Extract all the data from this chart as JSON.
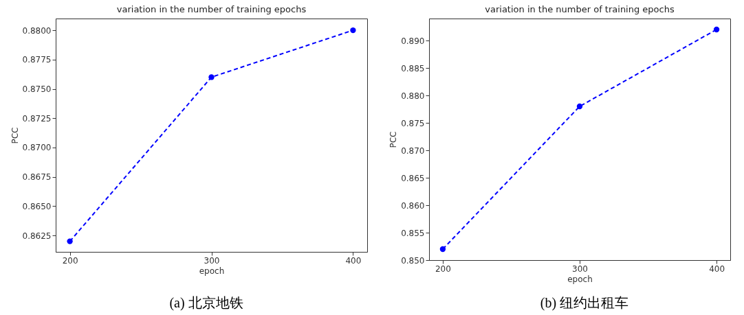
{
  "chart_data": [
    {
      "type": "line",
      "title": "variation in the number of training epochs",
      "xlabel": "epoch",
      "ylabel": "PCC",
      "x": [
        200,
        300,
        400
      ],
      "series": [
        {
          "color": "#0000ff",
          "values": [
            0.862,
            0.876,
            0.88
          ]
        }
      ],
      "xlim": [
        190,
        410
      ],
      "xticks": [
        200,
        300,
        400
      ],
      "ylim": [
        0.8611,
        0.881
      ],
      "yticks": [
        0.8625,
        {
          "value": 0.865,
          "label": "0.8650"
        },
        0.8675,
        {
          "value": 0.87,
          "label": "0.8700"
        },
        0.8725,
        {
          "value": 0.875,
          "label": "0.8750"
        },
        0.8775,
        {
          "value": 0.88,
          "label": "0.8800"
        }
      ],
      "grid": false,
      "marker": "circle",
      "line_style": "dashed",
      "annotations": [
        "(a) 北京地铁"
      ]
    },
    {
      "type": "line",
      "title": "variation in the number of training epochs",
      "xlabel": "epoch",
      "ylabel": "PCC",
      "x": [
        200,
        300,
        400
      ],
      "series": [
        {
          "color": "#0000ff",
          "values": [
            0.852,
            0.878,
            0.892
          ]
        }
      ],
      "xlim": [
        190,
        410
      ],
      "xticks": [
        200,
        300,
        400
      ],
      "ylim": [
        0.85,
        0.894
      ],
      "yticks": [
        {
          "value": 0.85,
          "label": "0.850"
        },
        0.855,
        {
          "value": 0.86,
          "label": "0.860"
        },
        0.865,
        {
          "value": 0.87,
          "label": "0.870"
        },
        0.875,
        {
          "value": 0.88,
          "label": "0.880"
        },
        0.885,
        {
          "value": 0.89,
          "label": "0.890"
        }
      ],
      "grid": false,
      "marker": "circle",
      "line_style": "dashed",
      "annotations": [
        "(b) 纽约出租车"
      ]
    }
  ]
}
